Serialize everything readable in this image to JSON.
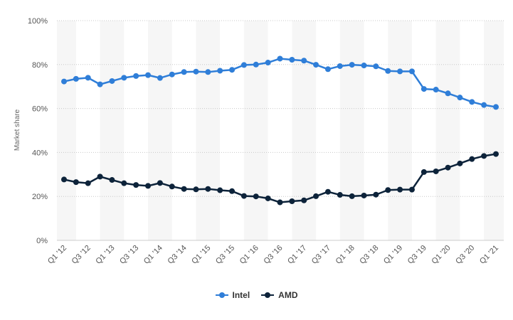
{
  "chart_data": {
    "type": "line",
    "ylabel": "Market share",
    "ylim": [
      0,
      100
    ],
    "yticks": [
      "0%",
      "20%",
      "40%",
      "60%",
      "80%",
      "100%"
    ],
    "x": [
      "Q1 '12",
      "Q2 '12",
      "Q3 '12",
      "Q4 '12",
      "Q1 '13",
      "Q2 '13",
      "Q3 '13",
      "Q4 '13",
      "Q1 '14",
      "Q2 '14",
      "Q3 '14",
      "Q4 '14",
      "Q1 '15",
      "Q2 '15",
      "Q3 '15",
      "Q4 '15",
      "Q1 '16",
      "Q2 '16",
      "Q3 '16",
      "Q4 '16",
      "Q1 '17",
      "Q2 '17",
      "Q3 '17",
      "Q4 '17",
      "Q1 '18",
      "Q2 '18",
      "Q3 '18",
      "Q4 '18",
      "Q1 '19",
      "Q2 '19",
      "Q3 '19",
      "Q4 '19",
      "Q1 '20",
      "Q2 '20",
      "Q3 '20",
      "Q4 '20",
      "Q1 '21"
    ],
    "xtick_labels": [
      "Q1 '12",
      "Q3 '12",
      "Q1 '13",
      "Q3 '13",
      "Q1 '14",
      "Q3 '14",
      "Q1 '15",
      "Q3 '15",
      "Q1 '16",
      "Q3 '16",
      "Q1 '17",
      "Q3 '17",
      "Q1 '18",
      "Q3 '18",
      "Q1 '19",
      "Q3 '19",
      "Q1 '20",
      "Q3 '20",
      "Q1 '21"
    ],
    "series": [
      {
        "name": "Intel",
        "color": "#2f7ed8",
        "values": [
          72.3,
          73.5,
          74.0,
          71.0,
          72.5,
          74.0,
          74.8,
          75.2,
          73.9,
          75.5,
          76.6,
          76.8,
          76.6,
          77.2,
          77.6,
          79.8,
          80.0,
          80.9,
          82.7,
          82.2,
          81.8,
          79.9,
          77.9,
          79.3,
          79.9,
          79.6,
          79.2,
          77.1,
          76.9,
          76.9,
          68.9,
          68.6,
          66.9,
          65.0,
          63.0,
          61.6,
          60.7
        ]
      },
      {
        "name": "AMD",
        "color": "#0d233a",
        "values": [
          27.7,
          26.5,
          26.0,
          29.0,
          27.5,
          26.0,
          25.2,
          24.8,
          26.1,
          24.5,
          23.4,
          23.2,
          23.4,
          22.8,
          22.4,
          20.2,
          20.0,
          19.1,
          17.3,
          17.8,
          18.2,
          20.1,
          22.1,
          20.7,
          20.1,
          20.4,
          20.8,
          22.9,
          23.1,
          23.1,
          31.1,
          31.4,
          33.1,
          35.0,
          37.0,
          38.4,
          39.3
        ]
      }
    ],
    "grid": true,
    "legend_position": "bottom"
  },
  "legend": {
    "intel": "Intel",
    "amd": "AMD",
    "intel_color": "#2f7ed8",
    "amd_color": "#0d233a"
  }
}
